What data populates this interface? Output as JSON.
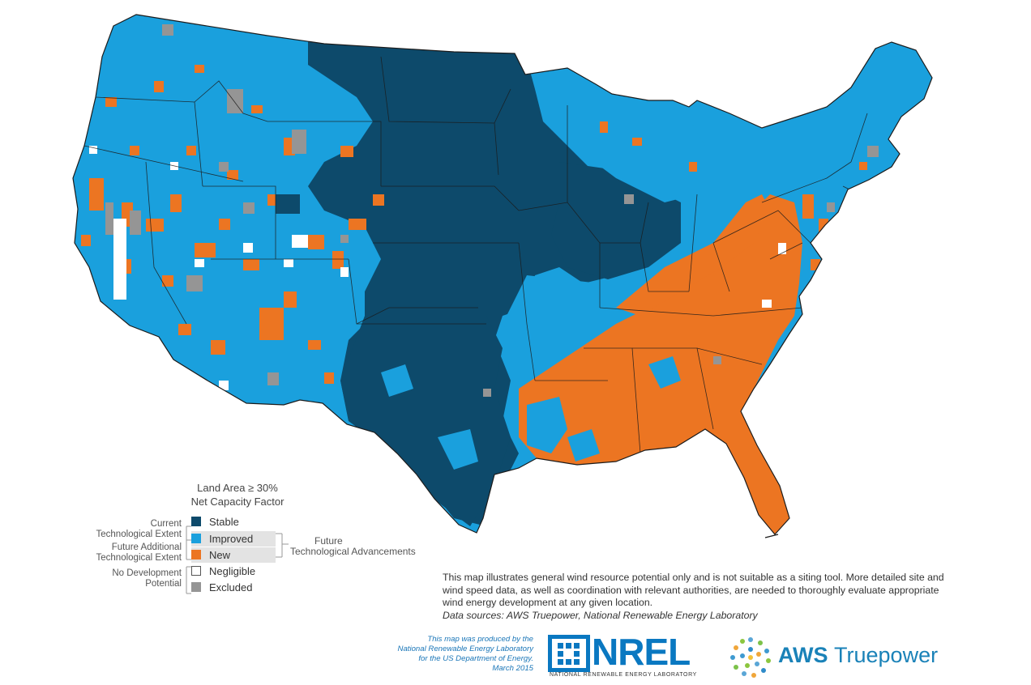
{
  "legend": {
    "title_line1": "Land Area ≥ 30%",
    "title_line2": "Net Capacity Factor",
    "items": [
      {
        "label": "Stable",
        "color": "#0d4a6b"
      },
      {
        "label": "Improved",
        "color": "#1aa0dd"
      },
      {
        "label": "New",
        "color": "#ec7522"
      },
      {
        "label": "Negligible",
        "color": "#ffffff"
      },
      {
        "label": "Excluded",
        "color": "#959595"
      }
    ],
    "groups": {
      "current_line1": "Current",
      "current_line2": "Technological Extent",
      "future_additional_line1": "Future Additional",
      "future_additional_line2": "Technological Extent",
      "no_dev_line1": "No Development",
      "no_dev_line2": "Potential",
      "future_adv_line1": "Future",
      "future_adv_line2": "Technological Advancements"
    }
  },
  "disclaimer": {
    "text": "This map illustrates general wind resource potential only and is not suitable as a siting tool.  More detailed site and wind speed data, as well as coordination with relevant authorities, are needed to thoroughly evaluate appropriate wind energy development at any given location.",
    "sources": "Data sources: AWS Truepower, National Renewable Energy Laboratory"
  },
  "credit": {
    "line1": "This map was produced by the",
    "line2": "National Renewable Energy Laboratory",
    "line3": "for the US Department of Energy.",
    "line4": "March 2015"
  },
  "logos": {
    "nrel_word": "NREL",
    "nrel_sub": "NATIONAL RENEWABLE ENERGY LABORATORY",
    "aws_bold": "AWS",
    "aws_rest": "Truepower"
  },
  "colors": {
    "stable": "#0d4a6b",
    "improved": "#1aa0dd",
    "new": "#ec7522",
    "negligible": "#ffffff",
    "excluded": "#959595",
    "border": "#1b1b1b"
  }
}
